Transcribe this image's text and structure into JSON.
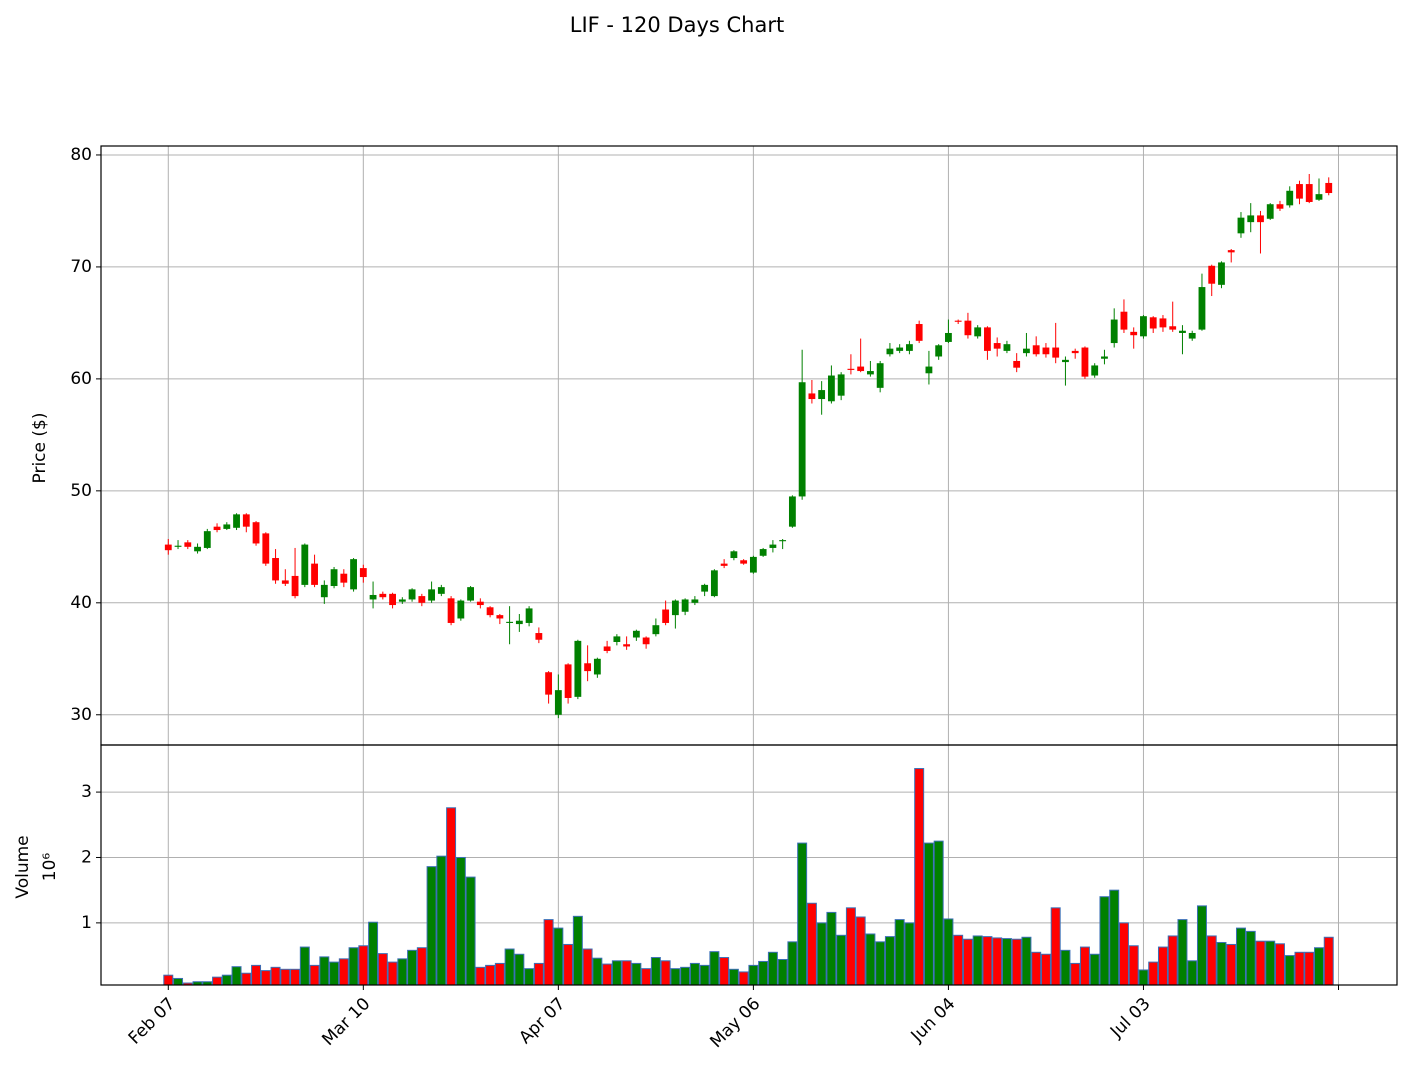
{
  "chart_data": {
    "type": "candlestick",
    "title": "LIF - 120 Days Chart",
    "y_label": "Price ($)",
    "up_color": "green",
    "down_color": "red",
    "volume_edge_color": "#3b6fb6",
    "grid": true,
    "categories": [
      "Feb 07",
      null,
      null,
      null,
      null,
      null,
      null,
      null,
      null,
      null,
      null,
      null,
      null,
      null,
      null,
      null,
      null,
      null,
      null,
      null,
      "Mar 10",
      null,
      null,
      null,
      null,
      null,
      null,
      null,
      null,
      null,
      null,
      null,
      null,
      null,
      null,
      null,
      null,
      null,
      null,
      null,
      "Apr 07",
      null,
      null,
      null,
      null,
      null,
      null,
      null,
      null,
      null,
      null,
      null,
      null,
      null,
      null,
      null,
      null,
      null,
      null,
      null,
      "May 06",
      null,
      null,
      null,
      null,
      null,
      null,
      null,
      null,
      null,
      null,
      null,
      null,
      null,
      null,
      null,
      null,
      null,
      null,
      null,
      "Jun 04",
      null,
      null,
      null,
      null,
      null,
      null,
      null,
      null,
      null,
      null,
      null,
      null,
      null,
      null,
      null,
      null,
      null,
      null,
      null,
      "Jul 03",
      null,
      null,
      null,
      null,
      null,
      null,
      null,
      null,
      null,
      null,
      null,
      null,
      null,
      null,
      null,
      null,
      null,
      null,
      null
    ],
    "xlim": [
      -6.9,
      126
    ],
    "xticks": [
      0,
      20,
      40,
      60,
      80,
      100,
      120
    ],
    "ylim": [
      27.3,
      80.8
    ],
    "yticks": [
      30,
      40,
      50,
      60,
      70,
      80
    ],
    "open": [
      45.2,
      45.0,
      45.4,
      44.6,
      44.9,
      46.8,
      46.6,
      46.7,
      47.9,
      47.2,
      46.2,
      44.0,
      42.0,
      42.4,
      41.6,
      43.5,
      40.5,
      41.5,
      42.6,
      41.2,
      43.1,
      40.3,
      40.8,
      40.8,
      40.1,
      40.3,
      40.6,
      40.2,
      40.8,
      40.4,
      38.6,
      40.2,
      40.1,
      39.6,
      38.9,
      38.2,
      38.1,
      38.2,
      37.3,
      33.8,
      30.0,
      34.5,
      31.6,
      34.6,
      33.6,
      36.1,
      36.5,
      36.3,
      36.9,
      36.9,
      37.2,
      39.4,
      38.9,
      39.2,
      40.0,
      41.0,
      40.6,
      43.5,
      44.0,
      43.8,
      42.7,
      44.2,
      44.9,
      45.5,
      46.8,
      49.5,
      58.7,
      58.2,
      58.0,
      58.5,
      60.9,
      61.1,
      60.4,
      59.2,
      62.2,
      62.5,
      62.5,
      64.9,
      60.5,
      62.0,
      63.3,
      65.2,
      65.2,
      63.8,
      64.6,
      63.2,
      62.5,
      61.6,
      62.3,
      63.0,
      62.8,
      62.8,
      61.5,
      62.5,
      62.8,
      60.3,
      61.8,
      63.2,
      66.0,
      64.2,
      63.8,
      65.5,
      65.4,
      64.7,
      64.1,
      63.6,
      64.4,
      70.1,
      68.4,
      71.5,
      73.0,
      74.0,
      74.6,
      74.3,
      75.6,
      75.5,
      77.4,
      77.4,
      76.0,
      77.5
    ],
    "high": [
      45.7,
      45.6,
      45.6,
      45.3,
      46.6,
      47.1,
      47.2,
      48.0,
      48.0,
      47.3,
      46.3,
      44.8,
      43.0,
      44.9,
      45.3,
      44.3,
      42.0,
      43.2,
      43.0,
      44.0,
      43.4,
      41.9,
      41.0,
      40.9,
      40.5,
      41.3,
      40.8,
      41.9,
      41.6,
      40.6,
      40.3,
      41.5,
      40.4,
      39.7,
      39.0,
      39.7,
      39.0,
      39.7,
      37.8,
      33.9,
      33.6,
      34.6,
      36.7,
      36.2,
      35.1,
      36.6,
      37.2,
      37.0,
      37.6,
      37.0,
      38.6,
      40.2,
      40.3,
      40.4,
      40.6,
      41.7,
      43.0,
      43.9,
      44.7,
      43.9,
      44.2,
      44.9,
      45.6,
      45.7,
      49.6,
      62.6,
      59.9,
      59.8,
      61.2,
      60.6,
      62.2,
      63.6,
      61.6,
      61.6,
      63.2,
      63.1,
      63.4,
      65.2,
      62.5,
      63.1,
      65.3,
      65.3,
      65.9,
      64.8,
      64.7,
      63.7,
      63.4,
      62.3,
      64.1,
      63.8,
      63.2,
      65.0,
      62.0,
      62.7,
      62.9,
      61.4,
      62.6,
      66.3,
      67.1,
      64.6,
      65.7,
      65.6,
      65.7,
      66.9,
      64.8,
      64.3,
      69.4,
      70.2,
      70.5,
      71.6,
      74.9,
      75.7,
      75.0,
      75.7,
      75.9,
      77.2,
      77.7,
      78.3,
      77.9,
      78.0
    ],
    "low": [
      44.3,
      44.8,
      44.8,
      44.4,
      44.8,
      46.3,
      46.5,
      46.5,
      46.3,
      45.1,
      43.3,
      41.7,
      41.5,
      40.4,
      41.4,
      41.4,
      39.9,
      41.3,
      41.4,
      41.0,
      41.8,
      39.5,
      40.3,
      39.5,
      39.9,
      40.1,
      39.7,
      40.0,
      40.6,
      38.0,
      38.4,
      40.1,
      39.5,
      38.7,
      38.1,
      36.3,
      37.4,
      37.9,
      36.4,
      31.0,
      29.7,
      31.0,
      31.4,
      33.0,
      33.3,
      35.5,
      36.2,
      35.8,
      36.6,
      35.9,
      37.0,
      38.0,
      37.7,
      38.9,
      39.8,
      40.6,
      40.5,
      43.1,
      43.8,
      43.4,
      42.6,
      44.1,
      44.5,
      44.8,
      46.7,
      49.2,
      57.8,
      56.8,
      57.8,
      58.1,
      60.4,
      60.6,
      60.2,
      58.8,
      62.0,
      62.3,
      62.2,
      63.2,
      59.5,
      61.7,
      63.2,
      64.9,
      63.6,
      63.6,
      61.7,
      62.0,
      62.3,
      60.6,
      62.0,
      62.0,
      61.9,
      61.4,
      59.4,
      61.8,
      60.0,
      60.1,
      61.3,
      62.8,
      64.1,
      62.7,
      63.6,
      64.1,
      64.2,
      64.2,
      62.2,
      63.4,
      64.3,
      67.4,
      68.1,
      70.4,
      72.6,
      73.1,
      71.2,
      74.2,
      75.0,
      75.3,
      75.6,
      75.7,
      75.9,
      76.4
    ],
    "close": [
      44.7,
      45.1,
      45.0,
      45.0,
      46.4,
      46.5,
      47.0,
      47.9,
      46.8,
      45.3,
      43.5,
      42.0,
      41.7,
      40.6,
      45.2,
      41.6,
      41.6,
      43.0,
      41.8,
      43.9,
      42.3,
      40.7,
      40.5,
      39.8,
      40.3,
      41.2,
      40.0,
      41.2,
      41.4,
      38.2,
      40.2,
      41.4,
      39.8,
      38.9,
      38.6,
      38.3,
      38.4,
      39.5,
      36.7,
      31.8,
      32.2,
      31.5,
      36.6,
      33.9,
      35.0,
      35.7,
      37.0,
      36.1,
      37.5,
      36.3,
      38.0,
      38.2,
      40.2,
      40.3,
      40.3,
      41.6,
      42.9,
      43.3,
      44.6,
      43.5,
      44.1,
      44.8,
      45.2,
      45.6,
      49.5,
      59.7,
      58.2,
      59.0,
      60.3,
      60.4,
      60.8,
      60.7,
      60.7,
      61.4,
      62.7,
      62.8,
      63.1,
      63.4,
      61.1,
      63.0,
      64.1,
      65.1,
      63.9,
      64.6,
      62.5,
      62.7,
      63.1,
      61.0,
      62.7,
      62.2,
      62.2,
      61.9,
      61.7,
      62.3,
      60.2,
      61.2,
      62.0,
      65.3,
      64.4,
      63.9,
      65.6,
      64.5,
      64.6,
      64.4,
      64.3,
      64.1,
      68.2,
      68.5,
      70.4,
      71.3,
      74.4,
      74.6,
      74.0,
      75.6,
      75.2,
      76.8,
      76.1,
      75.8,
      76.5,
      76.6
    ],
    "volume": {
      "label": "Volume",
      "offset": "10⁶",
      "ylim": [
        0.05,
        3.72
      ],
      "yticks": [
        1,
        2,
        3
      ],
      "values": [
        0.2,
        0.15,
        0.08,
        0.1,
        0.1,
        0.17,
        0.2,
        0.33,
        0.23,
        0.35,
        0.27,
        0.32,
        0.29,
        0.29,
        0.63,
        0.35,
        0.48,
        0.4,
        0.45,
        0.62,
        0.65,
        1.01,
        0.53,
        0.4,
        0.45,
        0.58,
        0.62,
        1.86,
        2.02,
        2.76,
        2.0,
        1.7,
        0.32,
        0.35,
        0.38,
        0.6,
        0.52,
        0.3,
        0.38,
        1.05,
        0.92,
        0.67,
        1.1,
        0.6,
        0.46,
        0.37,
        0.42,
        0.42,
        0.38,
        0.3,
        0.47,
        0.42,
        0.3,
        0.32,
        0.38,
        0.35,
        0.56,
        0.47,
        0.29,
        0.25,
        0.35,
        0.41,
        0.55,
        0.44,
        0.71,
        2.22,
        1.3,
        1.0,
        1.16,
        0.81,
        1.23,
        1.09,
        0.83,
        0.71,
        0.79,
        1.05,
        1.0,
        3.36,
        2.22,
        2.25,
        1.06,
        0.81,
        0.75,
        0.8,
        0.79,
        0.77,
        0.76,
        0.75,
        0.78,
        0.55,
        0.52,
        1.23,
        0.58,
        0.38,
        0.63,
        0.52,
        1.4,
        1.5,
        1.0,
        0.65,
        0.28,
        0.4,
        0.63,
        0.8,
        1.05,
        0.42,
        1.26,
        0.8,
        0.7,
        0.67,
        0.92,
        0.87,
        0.72,
        0.72,
        0.68,
        0.5,
        0.55,
        0.55,
        0.62,
        0.78
      ]
    }
  }
}
